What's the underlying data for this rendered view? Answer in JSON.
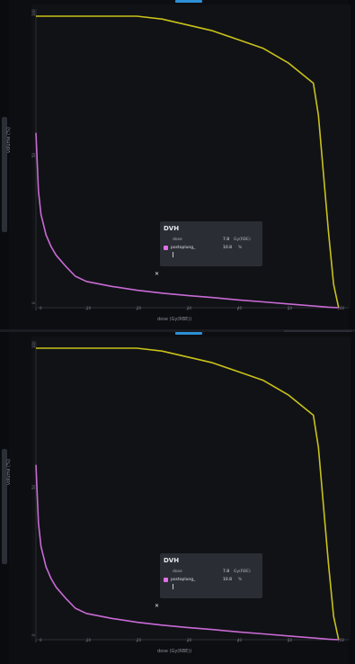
{
  "panels": [
    {
      "id": "top",
      "ylabel": "volume (%)",
      "xlabel": "dose (Gy(RBE))",
      "y_ticks": [
        "100",
        "50",
        "0"
      ],
      "x_ticks": [
        "0",
        "10",
        "20",
        "30",
        "40",
        "50",
        "60"
      ],
      "tooltip": {
        "title": "DVH",
        "dose_key": "dose",
        "dose_value": "7.8",
        "dose_unit": "Gy(RBE)",
        "series_name": "postoplung_",
        "series_value": "10.8",
        "series_unit": "%"
      },
      "marker_glyph": "✕"
    },
    {
      "id": "bottom",
      "ylabel": "volume (%)",
      "xlabel": "dose (Gy(RBE))",
      "y_ticks": [
        "100",
        "50",
        "0"
      ],
      "x_ticks": [
        "0",
        "10",
        "20",
        "30",
        "40",
        "50",
        "60"
      ],
      "tooltip": {
        "title": "DVH",
        "dose_key": "dose",
        "dose_value": "7.8",
        "dose_unit": "Gy(RBE)",
        "series_name": "postoplung_",
        "series_value": "10.8",
        "series_unit": "%"
      },
      "marker_glyph": "✕"
    }
  ],
  "colors": {
    "yellow_series": "#c8c21a",
    "magenta_series": "#c86ad4",
    "axis": "#2a2d33",
    "background": "#0d0e12"
  },
  "chart_data": [
    {
      "type": "line",
      "xlabel": "dose (Gy(RBE))",
      "ylabel": "volume (%)",
      "xlim": [
        0,
        62
      ],
      "ylim": [
        0,
        100
      ],
      "series": [
        {
          "x": [
            0,
            5,
            10,
            15,
            20,
            25,
            30,
            35,
            40,
            45,
            50,
            55,
            56,
            57,
            58,
            59,
            60
          ],
          "y": [
            100,
            100,
            100,
            100,
            100,
            99,
            97,
            95,
            92,
            89,
            84,
            77,
            66,
            46,
            26,
            8,
            0
          ],
          "color": "#c8c21a"
        },
        {
          "name": "postoplung_",
          "x": [
            0,
            0.5,
            1,
            2,
            3,
            4,
            5,
            6,
            7.8,
            10,
            15,
            20,
            25,
            30,
            35,
            40,
            45,
            50,
            55,
            58,
            60
          ],
          "y": [
            60,
            40,
            32,
            25,
            21,
            18,
            16,
            14,
            10.8,
            9,
            7.3,
            6,
            5,
            4.2,
            3.5,
            2.7,
            2,
            1.3,
            0.6,
            0.2,
            0
          ],
          "color": "#c86ad4"
        }
      ],
      "cursor": {
        "x": 7.8,
        "y": 10.8
      }
    },
    {
      "type": "line",
      "xlabel": "dose (Gy(RBE))",
      "ylabel": "volume (%)",
      "xlim": [
        0,
        62
      ],
      "ylim": [
        0,
        100
      ],
      "series": [
        {
          "x": [
            0,
            5,
            10,
            15,
            20,
            25,
            30,
            35,
            40,
            45,
            50,
            55,
            56,
            57,
            58,
            59,
            60
          ],
          "y": [
            100,
            100,
            100,
            100,
            100,
            99,
            97,
            95,
            92,
            89,
            84,
            77,
            66,
            46,
            26,
            8,
            0
          ],
          "color": "#c8c21a"
        },
        {
          "name": "postoplung_",
          "x": [
            0,
            0.5,
            1,
            2,
            3,
            4,
            5,
            6,
            7.8,
            10,
            15,
            20,
            25,
            30,
            35,
            40,
            45,
            50,
            55,
            58,
            60
          ],
          "y": [
            60,
            40,
            32,
            25,
            21,
            18,
            16,
            14,
            10.8,
            9,
            7.3,
            6,
            5,
            4.2,
            3.5,
            2.7,
            2,
            1.3,
            0.6,
            0.2,
            0
          ],
          "color": "#c86ad4"
        }
      ],
      "cursor": {
        "x": 7.8,
        "y": 10.8
      }
    }
  ]
}
